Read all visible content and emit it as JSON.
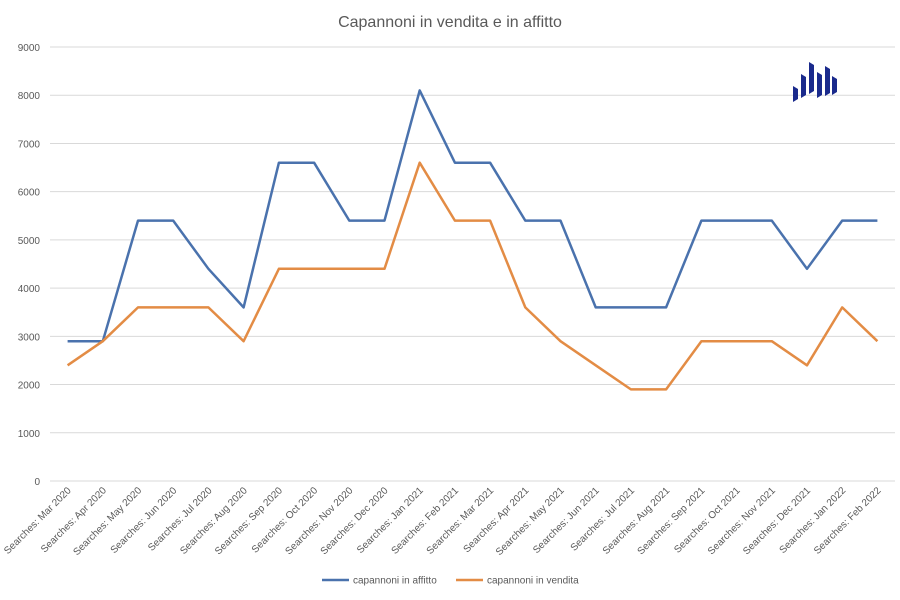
{
  "chart_data": {
    "type": "line",
    "title": "Capannoni in vendita e in affitto",
    "xlabel": "",
    "ylabel": "",
    "ylim": [
      0,
      9000
    ],
    "yticks": [
      0,
      1000,
      2000,
      3000,
      4000,
      5000,
      6000,
      7000,
      8000,
      9000
    ],
    "grid": true,
    "legend_position": "bottom",
    "categories": [
      "Searches: Mar 2020",
      "Searches: Apr 2020",
      "Searches: May 2020",
      "Searches: Jun 2020",
      "Searches: Jul 2020",
      "Searches: Aug 2020",
      "Searches: Sep 2020",
      "Searches: Oct 2020",
      "Searches: Nov 2020",
      "Searches: Dec 2020",
      "Searches: Jan 2021",
      "Searches: Feb 2021",
      "Searches: Mar 2021",
      "Searches: Apr 2021",
      "Searches: May 2021",
      "Searches: Jun 2021",
      "Searches: Jul 2021",
      "Searches: Aug 2021",
      "Searches: Sep 2021",
      "Searches: Oct 2021",
      "Searches: Nov 2021",
      "Searches: Dec 2021",
      "Searches: Jan 2022",
      "Searches: Feb 2022"
    ],
    "series": [
      {
        "name": "capannoni in affitto",
        "color": "#4a72ad",
        "values": [
          2900,
          2900,
          5400,
          5400,
          4400,
          3600,
          6600,
          6600,
          5400,
          5400,
          8100,
          6600,
          6600,
          5400,
          5400,
          3600,
          3600,
          3600,
          5400,
          5400,
          5400,
          4400,
          5400,
          5400
        ]
      },
      {
        "name": "capannoni in vendita",
        "color": "#e38c45",
        "values": [
          2400,
          2900,
          3600,
          3600,
          3600,
          2900,
          4400,
          4400,
          4400,
          4400,
          6600,
          5400,
          5400,
          3600,
          2900,
          2400,
          1900,
          1900,
          2900,
          2900,
          2900,
          2400,
          3600,
          2900
        ]
      }
    ]
  },
  "logo": {
    "name": "bar-logo",
    "color": "#1a2a8c"
  }
}
